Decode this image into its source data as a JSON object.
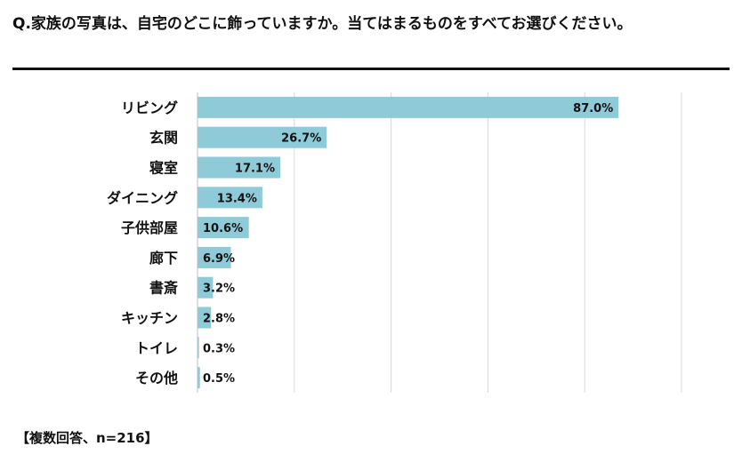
{
  "title": "Q.家族の写真は、自宅のどこに飾っていますか。当てはまるものをすべてお選びください。",
  "footnote": "【複数回答、n=216】",
  "colors": {
    "bar": "#8fcad8",
    "grid": "#d9d9d9",
    "axis": "#bfbfbf",
    "text": "#111111"
  },
  "chart_data": {
    "type": "bar",
    "orientation": "horizontal",
    "categories": [
      "リビング",
      "玄関",
      "寝室",
      "ダイニング",
      "子供部屋",
      "廊下",
      "書斎",
      "キッチン",
      "トイレ",
      "その他"
    ],
    "values": [
      87.0,
      26.7,
      17.1,
      13.4,
      10.6,
      6.9,
      3.2,
      2.8,
      0.3,
      0.5
    ],
    "data_labels": [
      "87.0%",
      "26.7%",
      "17.1%",
      "13.4%",
      "10.6%",
      "6.9%",
      "3.2%",
      "2.8%",
      "0.3%",
      "0.5%"
    ],
    "xlim": [
      0,
      100
    ],
    "grid": true,
    "title": "",
    "xlabel": "",
    "ylabel": ""
  }
}
